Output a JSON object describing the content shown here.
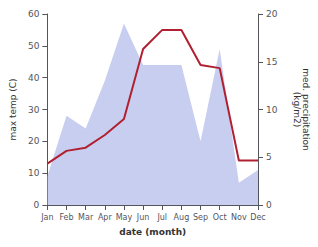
{
  "chart_data": {
    "type": "line",
    "xlabel": "date (month)",
    "ylabel": "max temp (C)",
    "y2label": "med. precipitation\n(kg/m2)",
    "categories": [
      "Jan",
      "Feb",
      "Mar",
      "Apr",
      "May",
      "Jun",
      "Jul",
      "Aug",
      "Sep",
      "Oct",
      "Nov",
      "Dec"
    ],
    "series": [
      {
        "type": "area",
        "color": "#aab4e8",
        "values": [
          9,
          28,
          24,
          39,
          57,
          44,
          44,
          44,
          20,
          49,
          7,
          11
        ]
      },
      {
        "type": "line",
        "color": "#b02030",
        "values": [
          13,
          17,
          18,
          22,
          27,
          49,
          55,
          55,
          44,
          43,
          14,
          14
        ]
      }
    ],
    "ylim": [
      0,
      60
    ],
    "yticks": [
      0,
      10,
      20,
      30,
      40,
      50,
      60
    ],
    "y2lim": [
      0,
      20
    ],
    "y2ticks": [
      0,
      5,
      10,
      15,
      20
    ],
    "grid": false
  }
}
